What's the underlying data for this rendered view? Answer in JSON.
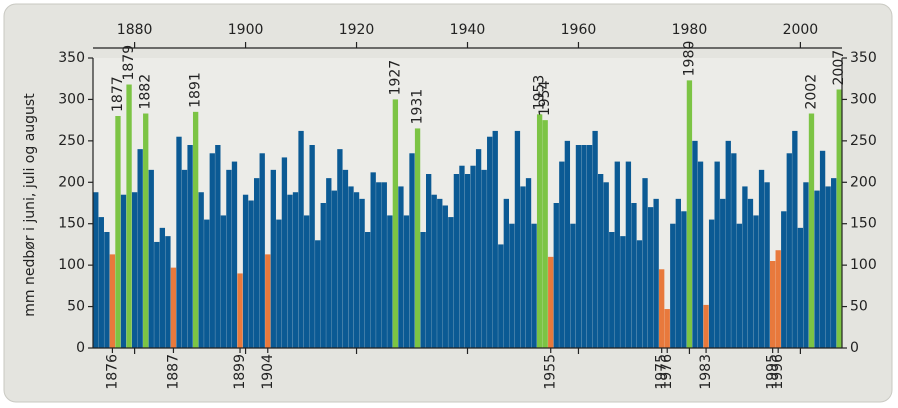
{
  "chart_data": {
    "type": "bar",
    "y_label": "mm nedbør i juni, juli og august",
    "x": [
      1873,
      1874,
      1875,
      1876,
      1877,
      1878,
      1879,
      1880,
      1881,
      1882,
      1883,
      1884,
      1885,
      1886,
      1887,
      1888,
      1889,
      1890,
      1891,
      1892,
      1893,
      1894,
      1895,
      1896,
      1897,
      1898,
      1899,
      1900,
      1901,
      1902,
      1903,
      1904,
      1905,
      1906,
      1907,
      1908,
      1909,
      1910,
      1911,
      1912,
      1913,
      1914,
      1915,
      1916,
      1917,
      1918,
      1919,
      1920,
      1921,
      1922,
      1923,
      1924,
      1925,
      1926,
      1927,
      1928,
      1929,
      1930,
      1931,
      1932,
      1933,
      1934,
      1935,
      1936,
      1937,
      1938,
      1939,
      1940,
      1941,
      1942,
      1943,
      1944,
      1945,
      1946,
      1947,
      1948,
      1949,
      1950,
      1951,
      1952,
      1953,
      1954,
      1955,
      1956,
      1957,
      1958,
      1959,
      1960,
      1961,
      1962,
      1963,
      1964,
      1965,
      1966,
      1967,
      1968,
      1969,
      1970,
      1971,
      1972,
      1973,
      1974,
      1975,
      1976,
      1977,
      1978,
      1979,
      1980,
      1981,
      1982,
      1983,
      1984,
      1985,
      1986,
      1987,
      1988,
      1989,
      1990,
      1991,
      1992,
      1993,
      1994,
      1995,
      1996,
      1997,
      1998,
      1999,
      2000,
      2001,
      2002,
      2003,
      2004,
      2005,
      2006,
      2007
    ],
    "values": [
      188,
      158,
      140,
      113,
      280,
      185,
      318,
      188,
      240,
      283,
      215,
      128,
      145,
      135,
      97,
      255,
      215,
      245,
      285,
      188,
      155,
      235,
      245,
      160,
      215,
      225,
      90,
      185,
      178,
      205,
      235,
      113,
      215,
      155,
      230,
      185,
      188,
      262,
      160,
      245,
      130,
      175,
      205,
      190,
      240,
      215,
      195,
      188,
      180,
      140,
      212,
      200,
      200,
      160,
      300,
      195,
      160,
      235,
      265,
      140,
      210,
      185,
      180,
      172,
      158,
      210,
      220,
      210,
      220,
      240,
      215,
      255,
      262,
      125,
      180,
      150,
      262,
      195,
      205,
      150,
      282,
      275,
      110,
      175,
      225,
      250,
      150,
      245,
      245,
      245,
      262,
      210,
      200,
      140,
      225,
      135,
      225,
      175,
      130,
      205,
      170,
      180,
      95,
      47,
      150,
      180,
      165,
      323,
      250,
      225,
      52,
      155,
      225,
      180,
      250,
      235,
      150,
      195,
      180,
      160,
      215,
      200,
      105,
      118,
      165,
      235,
      262,
      145,
      200,
      283,
      190,
      238,
      195,
      205,
      312
    ],
    "color": "#0b5a94",
    "wet_color": "#7cc444",
    "dry_color": "#e8793c",
    "colors": [
      "#0b5a94",
      "#0b5a94",
      "#0b5a94",
      "#e8793c",
      "#7cc444",
      "#0b5a94",
      "#7cc444",
      "#0b5a94",
      "#0b5a94",
      "#7cc444",
      "#0b5a94",
      "#0b5a94",
      "#0b5a94",
      "#0b5a94",
      "#e8793c",
      "#0b5a94",
      "#0b5a94",
      "#0b5a94",
      "#7cc444",
      "#0b5a94",
      "#0b5a94",
      "#0b5a94",
      "#0b5a94",
      "#0b5a94",
      "#0b5a94",
      "#0b5a94",
      "#e8793c",
      "#0b5a94",
      "#0b5a94",
      "#0b5a94",
      "#0b5a94",
      "#e8793c",
      "#0b5a94",
      "#0b5a94",
      "#0b5a94",
      "#0b5a94",
      "#0b5a94",
      "#0b5a94",
      "#0b5a94",
      "#0b5a94",
      "#0b5a94",
      "#0b5a94",
      "#0b5a94",
      "#0b5a94",
      "#0b5a94",
      "#0b5a94",
      "#0b5a94",
      "#0b5a94",
      "#0b5a94",
      "#0b5a94",
      "#0b5a94",
      "#0b5a94",
      "#0b5a94",
      "#0b5a94",
      "#7cc444",
      "#0b5a94",
      "#0b5a94",
      "#0b5a94",
      "#7cc444",
      "#0b5a94",
      "#0b5a94",
      "#0b5a94",
      "#0b5a94",
      "#0b5a94",
      "#0b5a94",
      "#0b5a94",
      "#0b5a94",
      "#0b5a94",
      "#0b5a94",
      "#0b5a94",
      "#0b5a94",
      "#0b5a94",
      "#0b5a94",
      "#0b5a94",
      "#0b5a94",
      "#0b5a94",
      "#0b5a94",
      "#0b5a94",
      "#0b5a94",
      "#0b5a94",
      "#7cc444",
      "#7cc444",
      "#e8793c",
      "#0b5a94",
      "#0b5a94",
      "#0b5a94",
      "#0b5a94",
      "#0b5a94",
      "#0b5a94",
      "#0b5a94",
      "#0b5a94",
      "#0b5a94",
      "#0b5a94",
      "#0b5a94",
      "#0b5a94",
      "#0b5a94",
      "#0b5a94",
      "#0b5a94",
      "#0b5a94",
      "#0b5a94",
      "#0b5a94",
      "#0b5a94",
      "#e8793c",
      "#e8793c",
      "#0b5a94",
      "#0b5a94",
      "#0b5a94",
      "#7cc444",
      "#0b5a94",
      "#0b5a94",
      "#e8793c",
      "#0b5a94",
      "#0b5a94",
      "#0b5a94",
      "#0b5a94",
      "#0b5a94",
      "#0b5a94",
      "#0b5a94",
      "#0b5a94",
      "#0b5a94",
      "#0b5a94",
      "#0b5a94",
      "#e8793c",
      "#e8793c",
      "#0b5a94",
      "#0b5a94",
      "#0b5a94",
      "#0b5a94",
      "#0b5a94",
      "#7cc444",
      "#0b5a94",
      "#0b5a94",
      "#0b5a94",
      "#0b5a94",
      "#7cc444"
    ],
    "xlim": [
      1872.5,
      2007.5
    ],
    "xticks": [
      1880,
      1900,
      1920,
      1940,
      1960,
      1980,
      2000
    ],
    "ylim": [
      0,
      350
    ],
    "yticks": [
      0,
      50,
      100,
      150,
      200,
      250,
      300,
      350
    ]
  }
}
